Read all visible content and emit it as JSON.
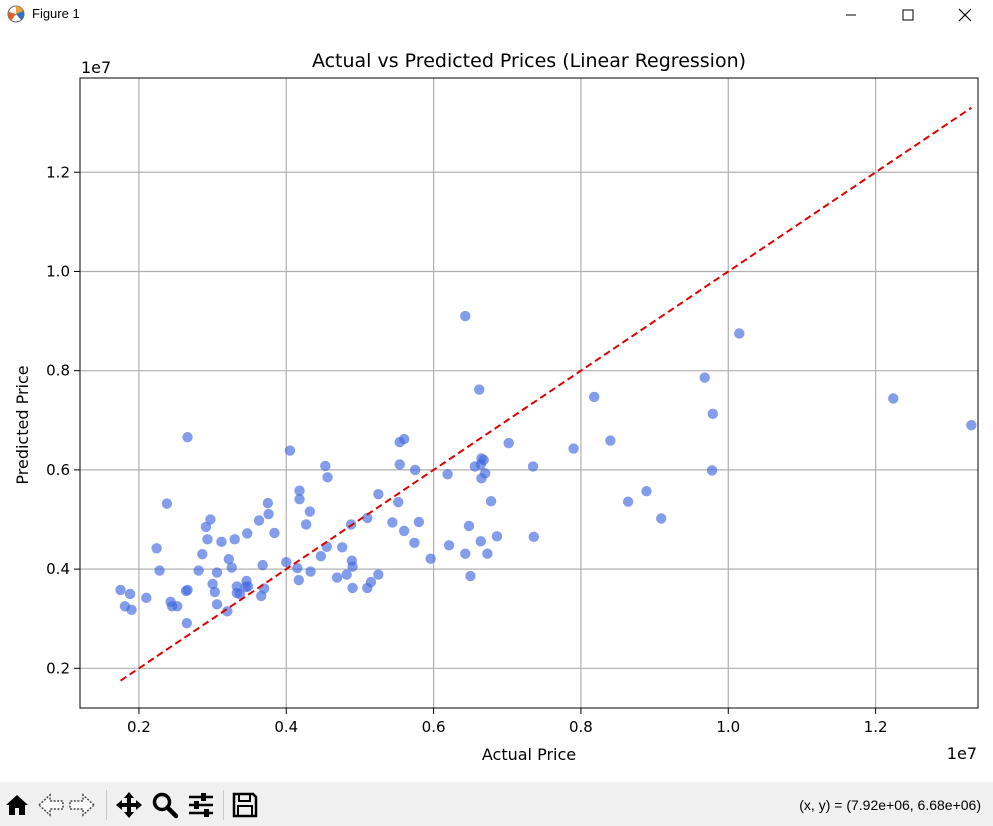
{
  "window": {
    "title": "Figure 1",
    "icon": "matplotlib-logo-icon",
    "controls": [
      "minimize-icon",
      "maximize-icon",
      "close-icon"
    ]
  },
  "toolbar": {
    "buttons": [
      "home-icon",
      "back-arrow-icon",
      "forward-arrow-icon",
      "pan-move-icon",
      "zoom-magnifier-icon",
      "configure-subplots-icon",
      "save-floppy-icon"
    ],
    "coordinates": "(x, y) = (7.92e+06, 6.68e+06)"
  },
  "colors": {
    "points": "#4169e1",
    "reference_line": "#e00000",
    "grid": "#b0b0b0"
  },
  "chart_data": {
    "type": "scatter",
    "title": "Actual vs Predicted Prices (Linear Regression)",
    "xlabel": "Actual Price",
    "ylabel": "Predicted Price",
    "x_offset_label": "1e7",
    "y_offset_label": "1e7",
    "xlim": [
      0.12,
      1.339
    ],
    "ylim": [
      0.12,
      1.39
    ],
    "xticks": [
      0.2,
      0.4,
      0.6,
      0.8,
      1.0,
      1.2
    ],
    "xtick_labels": [
      "0.2",
      "0.4",
      "0.6",
      "0.8",
      "1.0",
      "1.2"
    ],
    "yticks": [
      0.2,
      0.4,
      0.6,
      0.8,
      1.0,
      1.2
    ],
    "ytick_labels": [
      "0.2",
      "0.4",
      "0.6",
      "0.8",
      "1.0",
      "1.2"
    ],
    "grid": true,
    "reference_line": {
      "x": [
        0.175,
        1.33
      ],
      "y": [
        0.175,
        1.33
      ],
      "style": "dashed"
    },
    "points": [
      [
        0.175,
        0.358
      ],
      [
        0.181,
        0.325
      ],
      [
        0.188,
        0.35
      ],
      [
        0.19,
        0.318
      ],
      [
        0.21,
        0.342
      ],
      [
        0.224,
        0.442
      ],
      [
        0.228,
        0.397
      ],
      [
        0.238,
        0.532
      ],
      [
        0.243,
        0.334
      ],
      [
        0.245,
        0.325
      ],
      [
        0.252,
        0.325
      ],
      [
        0.264,
        0.356
      ],
      [
        0.265,
        0.291
      ],
      [
        0.266,
        0.358
      ],
      [
        0.266,
        0.666
      ],
      [
        0.281,
        0.397
      ],
      [
        0.286,
        0.43
      ],
      [
        0.291,
        0.485
      ],
      [
        0.293,
        0.46
      ],
      [
        0.297,
        0.5
      ],
      [
        0.3,
        0.37
      ],
      [
        0.303,
        0.354
      ],
      [
        0.306,
        0.329
      ],
      [
        0.306,
        0.393
      ],
      [
        0.312,
        0.455
      ],
      [
        0.32,
        0.315
      ],
      [
        0.322,
        0.42
      ],
      [
        0.326,
        0.403
      ],
      [
        0.33,
        0.46
      ],
      [
        0.333,
        0.352
      ],
      [
        0.333,
        0.365
      ],
      [
        0.337,
        0.35
      ],
      [
        0.345,
        0.364
      ],
      [
        0.346,
        0.376
      ],
      [
        0.348,
        0.365
      ],
      [
        0.347,
        0.472
      ],
      [
        0.363,
        0.498
      ],
      [
        0.366,
        0.346
      ],
      [
        0.368,
        0.408
      ],
      [
        0.37,
        0.361
      ],
      [
        0.375,
        0.533
      ],
      [
        0.376,
        0.511
      ],
      [
        0.384,
        0.473
      ],
      [
        0.4,
        0.414
      ],
      [
        0.405,
        0.639
      ],
      [
        0.415,
        0.402
      ],
      [
        0.417,
        0.378
      ],
      [
        0.418,
        0.541
      ],
      [
        0.418,
        0.558
      ],
      [
        0.427,
        0.49
      ],
      [
        0.432,
        0.516
      ],
      [
        0.433,
        0.395
      ],
      [
        0.447,
        0.426
      ],
      [
        0.453,
        0.608
      ],
      [
        0.455,
        0.445
      ],
      [
        0.456,
        0.585
      ],
      [
        0.469,
        0.383
      ],
      [
        0.476,
        0.444
      ],
      [
        0.482,
        0.389
      ],
      [
        0.488,
        0.49
      ],
      [
        0.489,
        0.417
      ],
      [
        0.49,
        0.362
      ],
      [
        0.49,
        0.405
      ],
      [
        0.51,
        0.362
      ],
      [
        0.51,
        0.503
      ],
      [
        0.515,
        0.374
      ],
      [
        0.525,
        0.389
      ],
      [
        0.525,
        0.551
      ],
      [
        0.544,
        0.494
      ],
      [
        0.552,
        0.535
      ],
      [
        0.554,
        0.656
      ],
      [
        0.554,
        0.611
      ],
      [
        0.56,
        0.662
      ],
      [
        0.56,
        0.477
      ],
      [
        0.574,
        0.453
      ],
      [
        0.575,
        0.6
      ],
      [
        0.58,
        0.495
      ],
      [
        0.596,
        0.421
      ],
      [
        0.619,
        0.591
      ],
      [
        0.621,
        0.448
      ],
      [
        0.643,
        0.91
      ],
      [
        0.643,
        0.431
      ],
      [
        0.648,
        0.487
      ],
      [
        0.65,
        0.386
      ],
      [
        0.656,
        0.607
      ],
      [
        0.662,
        0.762
      ],
      [
        0.664,
        0.456
      ],
      [
        0.664,
        0.611
      ],
      [
        0.665,
        0.583
      ],
      [
        0.665,
        0.623
      ],
      [
        0.668,
        0.62
      ],
      [
        0.67,
        0.593
      ],
      [
        0.673,
        0.431
      ],
      [
        0.678,
        0.537
      ],
      [
        0.686,
        0.466
      ],
      [
        0.702,
        0.654
      ],
      [
        0.735,
        0.607
      ],
      [
        0.736,
        0.465
      ],
      [
        0.79,
        0.643
      ],
      [
        0.818,
        0.747
      ],
      [
        0.84,
        0.659
      ],
      [
        0.864,
        0.536
      ],
      [
        0.889,
        0.557
      ],
      [
        0.909,
        0.502
      ],
      [
        0.968,
        0.786
      ],
      [
        0.978,
        0.599
      ],
      [
        0.979,
        0.713
      ],
      [
        1.015,
        0.875
      ],
      [
        1.224,
        0.744
      ],
      [
        1.33,
        0.69
      ]
    ]
  }
}
